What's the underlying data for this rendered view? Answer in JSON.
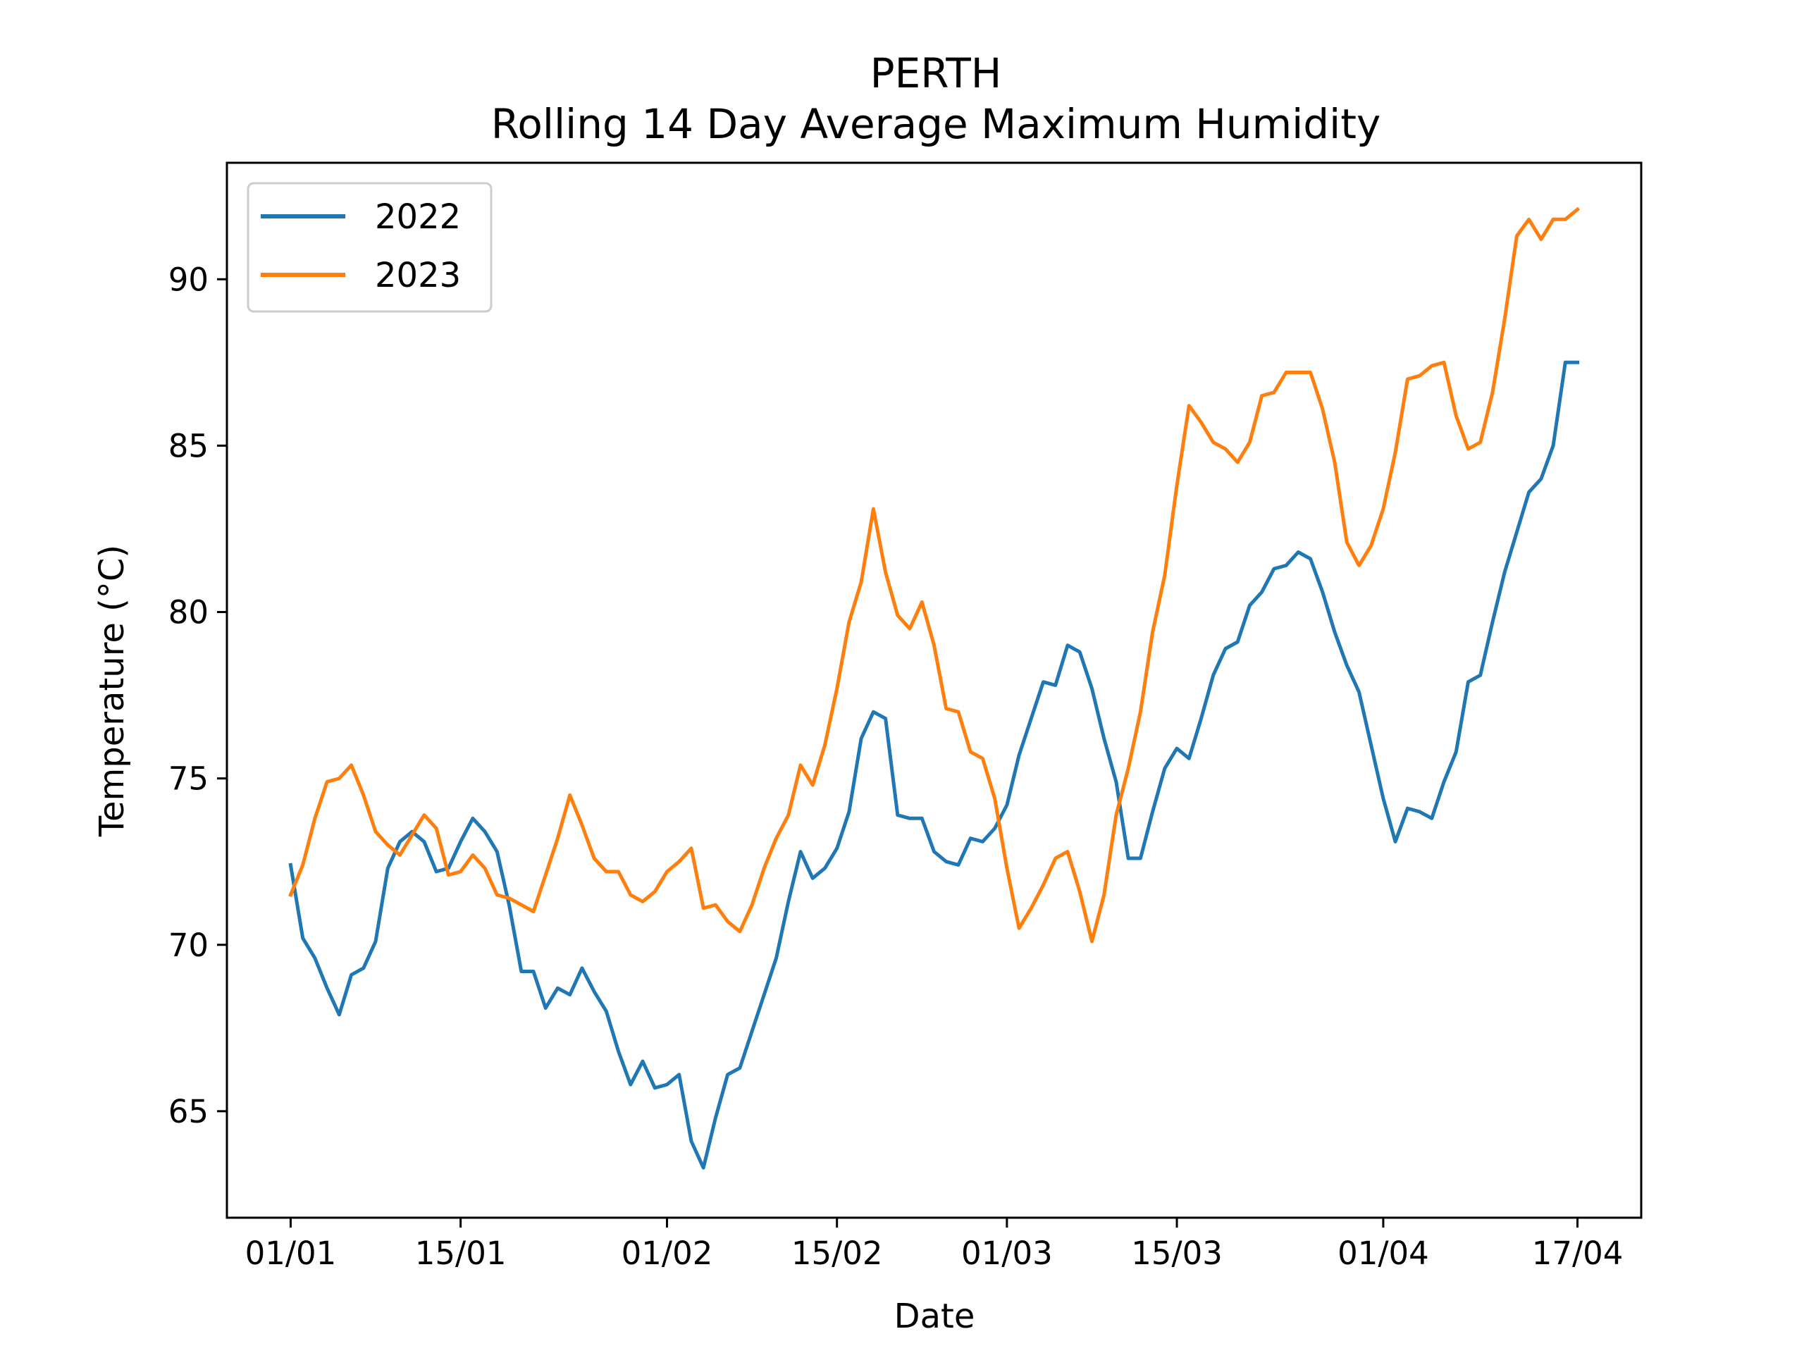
{
  "chart_data": {
    "type": "line",
    "title": "PERTH",
    "subtitle": "Rolling 14 Day Average Maximum Humidity",
    "xlabel": "Date",
    "ylabel": "Temperature (°C)",
    "x_ticks": [
      "01/01",
      "15/01",
      "01/02",
      "15/02",
      "01/03",
      "15/03",
      "01/04",
      "17/04"
    ],
    "x_tick_days": [
      0,
      14,
      31,
      45,
      59,
      73,
      90,
      106
    ],
    "y_ticks": [
      65,
      70,
      75,
      80,
      85,
      90
    ],
    "xlim": [
      -5.25,
      111.25
    ],
    "ylim": [
      61.8,
      93.5
    ],
    "grid": false,
    "legend": "top-left",
    "series": [
      {
        "name": "2022",
        "color": "#1f77b4",
        "values": [
          72.4,
          70.2,
          69.6,
          68.7,
          67.9,
          69.1,
          69.3,
          70.1,
          72.3,
          73.1,
          73.4,
          73.1,
          72.2,
          72.3,
          73.1,
          73.8,
          73.4,
          72.8,
          71.2,
          69.2,
          69.2,
          68.1,
          68.7,
          68.5,
          69.3,
          68.6,
          68.0,
          66.8,
          65.8,
          66.5,
          65.7,
          65.8,
          66.1,
          64.1,
          63.3,
          64.8,
          66.1,
          66.3,
          67.4,
          68.5,
          69.6,
          71.3,
          72.8,
          72.0,
          72.3,
          72.9,
          74.0,
          76.2,
          77.0,
          76.8,
          73.9,
          73.8,
          73.8,
          72.8,
          72.5,
          72.4,
          73.2,
          73.1,
          73.5,
          74.2,
          75.7,
          76.8,
          77.9,
          77.8,
          79.0,
          78.8,
          77.7,
          76.2,
          74.9,
          72.6,
          72.6,
          74.0,
          75.3,
          75.9,
          75.6,
          76.8,
          78.1,
          78.9,
          79.1,
          80.2,
          80.6,
          81.3,
          81.4,
          81.8,
          81.6,
          80.6,
          79.4,
          78.4,
          77.6,
          76.0,
          74.4,
          73.1,
          74.1,
          74.0,
          73.8,
          74.9,
          75.8,
          77.9,
          78.1,
          79.7,
          81.2,
          82.4,
          83.6,
          84.0,
          85.0,
          87.5,
          87.5
        ]
      },
      {
        "name": "2023",
        "color": "#ff7f0e",
        "values": [
          71.5,
          72.4,
          73.8,
          74.9,
          75.0,
          75.4,
          74.5,
          73.4,
          73.0,
          72.7,
          73.3,
          73.9,
          73.5,
          72.1,
          72.2,
          72.7,
          72.3,
          71.5,
          71.4,
          71.2,
          71.0,
          72.1,
          73.2,
          74.5,
          73.6,
          72.6,
          72.2,
          72.2,
          71.5,
          71.3,
          71.6,
          72.2,
          72.5,
          72.9,
          71.1,
          71.2,
          70.7,
          70.4,
          71.2,
          72.3,
          73.2,
          73.9,
          75.4,
          74.8,
          76.0,
          77.7,
          79.7,
          80.9,
          83.1,
          81.2,
          79.9,
          79.5,
          80.3,
          79.0,
          77.1,
          77.0,
          75.8,
          75.6,
          74.4,
          72.3,
          70.5,
          71.1,
          71.8,
          72.6,
          72.8,
          71.6,
          70.1,
          71.5,
          73.9,
          75.3,
          77.0,
          79.4,
          81.1,
          83.8,
          86.2,
          85.7,
          85.1,
          84.9,
          84.5,
          85.1,
          86.5,
          86.6,
          87.2,
          87.2,
          87.2,
          86.1,
          84.5,
          82.1,
          81.4,
          82.0,
          83.1,
          84.8,
          87.0,
          87.1,
          87.4,
          87.5,
          85.9,
          84.9,
          85.1,
          86.6,
          88.8,
          91.3,
          91.8,
          91.2,
          91.8,
          91.8,
          92.1
        ]
      }
    ]
  }
}
